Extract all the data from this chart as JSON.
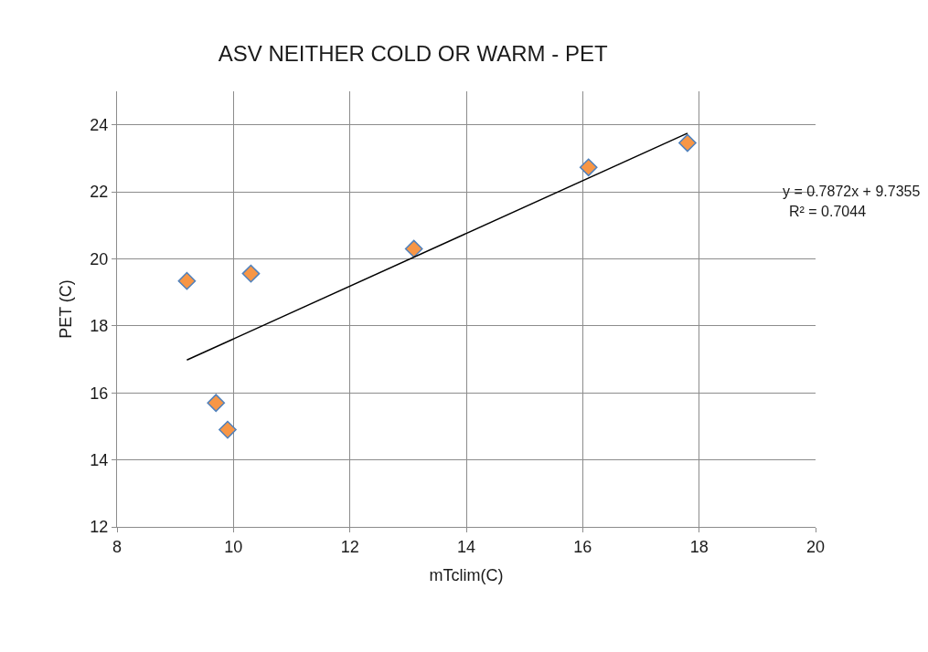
{
  "chart_data": {
    "type": "scatter",
    "title": "ASV NEITHER COLD OR WARM - PET",
    "xlabel": "mTclim(C)",
    "ylabel": "PET (C)",
    "x": [
      9.2,
      9.7,
      9.9,
      10.3,
      13.1,
      16.1,
      17.8
    ],
    "series": [
      {
        "color": "#f79646",
        "marker": "diamond",
        "values": [
          19.34,
          15.7,
          14.9,
          19.56,
          20.3,
          22.73,
          23.46
        ]
      },
      {
        "type": "line",
        "color": "#000000",
        "marker": "none",
        "x": [
          9.2,
          17.8
        ],
        "values": [
          16.98,
          23.75
        ]
      }
    ],
    "xlim": [
      8,
      20
    ],
    "xticks": [
      8,
      10,
      12,
      14,
      16,
      18,
      20
    ],
    "ylim": [
      12,
      25
    ],
    "yticks": [
      12,
      14,
      16,
      18,
      20,
      22,
      24
    ],
    "grid": true,
    "legend": false,
    "annotations": [
      "y = 0.7872x + 9.7355",
      "R² = 0.7044"
    ]
  }
}
